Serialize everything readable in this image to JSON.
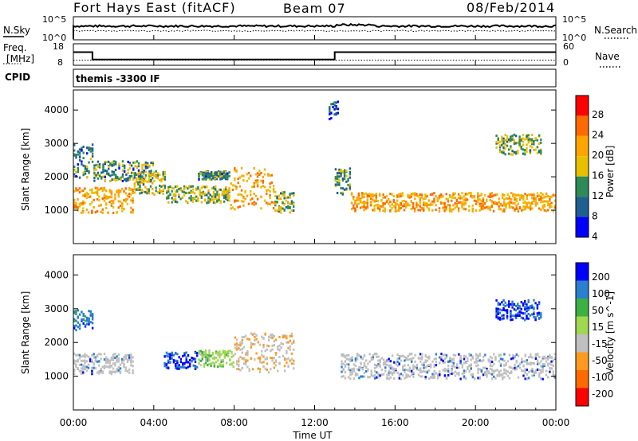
{
  "header": {
    "station": "Fort Hays East (fitACF)",
    "beam": "Beam 07",
    "date": "08/Feb/2014"
  },
  "nsky_panel": {
    "left_label": "N.Sky",
    "right_label": "N.Search",
    "left_ticks": [
      "10^5",
      "10^0"
    ],
    "right_ticks": [
      "10^5",
      "10^0"
    ]
  },
  "freq_panel": {
    "left_label_line1": "Freq.",
    "left_label_line2": "[MHz]",
    "right_label": "Nave",
    "left_ticks": [
      "18",
      "8"
    ],
    "right_ticks": [
      "60",
      "0"
    ],
    "freq_steps": [
      {
        "t0": 0.0,
        "t1": 0.95,
        "mhz": 14.6
      },
      {
        "t0": 0.95,
        "t1": 13.0,
        "mhz": 10.4
      },
      {
        "t0": 13.0,
        "t1": 24.0,
        "mhz": 14.6
      }
    ],
    "nave_level": 12
  },
  "cpid_panel": {
    "label": "CPID",
    "program": "themis -3300 IF"
  },
  "chart_data": [
    {
      "type": "heatmap",
      "name": "power",
      "ylabel": "Slant Range [km]",
      "xlabel": "",
      "ylim": [
        0,
        4600
      ],
      "yticks": [
        1000,
        2000,
        3000,
        4000
      ],
      "xlim": [
        0,
        24
      ],
      "colorbar_label": "Power [dB]",
      "colorbar_ticks": [
        "28",
        "24",
        "20",
        "16",
        "12",
        "8",
        "4"
      ],
      "colorbar_colors": [
        "#ff0000",
        "#ff6a00",
        "#ffa500",
        "#e8c000",
        "#2e8b57",
        "#1e6090",
        "#0000ff"
      ],
      "colorbar_range": [
        0,
        30
      ],
      "scatter_echoes": [
        {
          "t0": 0.0,
          "t1": 1.0,
          "r0": 2000,
          "r1": 3000,
          "level": 8
        },
        {
          "t0": 1.0,
          "t1": 4.0,
          "r0": 1900,
          "r1": 2500,
          "level": 9
        },
        {
          "t0": 0.0,
          "t1": 3.0,
          "r0": 950,
          "r1": 1700,
          "level": 20
        },
        {
          "t0": 3.0,
          "t1": 4.6,
          "r0": 1500,
          "r1": 2200,
          "level": 14
        },
        {
          "t0": 4.6,
          "t1": 7.8,
          "r0": 1250,
          "r1": 1750,
          "level": 13
        },
        {
          "t0": 6.2,
          "t1": 7.8,
          "r0": 1950,
          "r1": 2200,
          "level": 8
        },
        {
          "t0": 7.8,
          "t1": 10.0,
          "r0": 1050,
          "r1": 2300,
          "level": 20
        },
        {
          "t0": 10.0,
          "t1": 11.0,
          "r0": 950,
          "r1": 1600,
          "level": 12
        },
        {
          "t0": 13.0,
          "t1": 13.8,
          "r0": 1500,
          "r1": 2300,
          "level": 10
        },
        {
          "t0": 13.8,
          "t1": 24.0,
          "r0": 1000,
          "r1": 1550,
          "level": 20
        },
        {
          "t0": 21.0,
          "t1": 23.3,
          "r0": 2700,
          "r1": 3300,
          "level": 12
        },
        {
          "t0": 12.7,
          "t1": 13.2,
          "r0": 3700,
          "r1": 4300,
          "level": 6
        }
      ]
    },
    {
      "type": "heatmap",
      "name": "velocity",
      "ylabel": "Slant Range [km]",
      "xlabel": "Time UT",
      "ylim": [
        0,
        4600
      ],
      "yticks": [
        1000,
        2000,
        3000,
        4000
      ],
      "xlim": [
        0,
        24
      ],
      "xtick_labels": [
        "00:00",
        "04:00",
        "08:00",
        "12:00",
        "16:00",
        "20:00",
        "00:00"
      ],
      "colorbar_label": "Velocity [m s^-1]",
      "colorbar_ticks": [
        "200",
        "100",
        "50",
        "15",
        "-15",
        "-50",
        "-100",
        "-200"
      ],
      "colorbar_colors": [
        "#0000ff",
        "#2a7fd0",
        "#3cb043",
        "#a0d850",
        "#c0c0c0",
        "#ff9a20",
        "#ff6a00",
        "#ff0000"
      ],
      "colorbar_range": [
        -250,
        250
      ],
      "ground_scatter_color": "#c0c0c0",
      "scatter_echoes": [
        {
          "t0": 0.0,
          "t1": 3.0,
          "r0": 1100,
          "r1": 1700,
          "vel": 0
        },
        {
          "t0": 0.0,
          "t1": 1.0,
          "r0": 2400,
          "r1": 3000,
          "vel": 180
        },
        {
          "t0": 4.5,
          "t1": 6.2,
          "r0": 1250,
          "r1": 1750,
          "vel": 220
        },
        {
          "t0": 6.2,
          "t1": 8.0,
          "r0": 1300,
          "r1": 1800,
          "vel": 40
        },
        {
          "t0": 8.0,
          "t1": 11.0,
          "r0": 1150,
          "r1": 2300,
          "vel": -60
        },
        {
          "t0": 13.3,
          "t1": 24.0,
          "r0": 950,
          "r1": 1700,
          "vel": 0
        },
        {
          "t0": 21.0,
          "t1": 23.3,
          "r0": 2700,
          "r1": 3300,
          "vel": 210
        }
      ]
    }
  ]
}
